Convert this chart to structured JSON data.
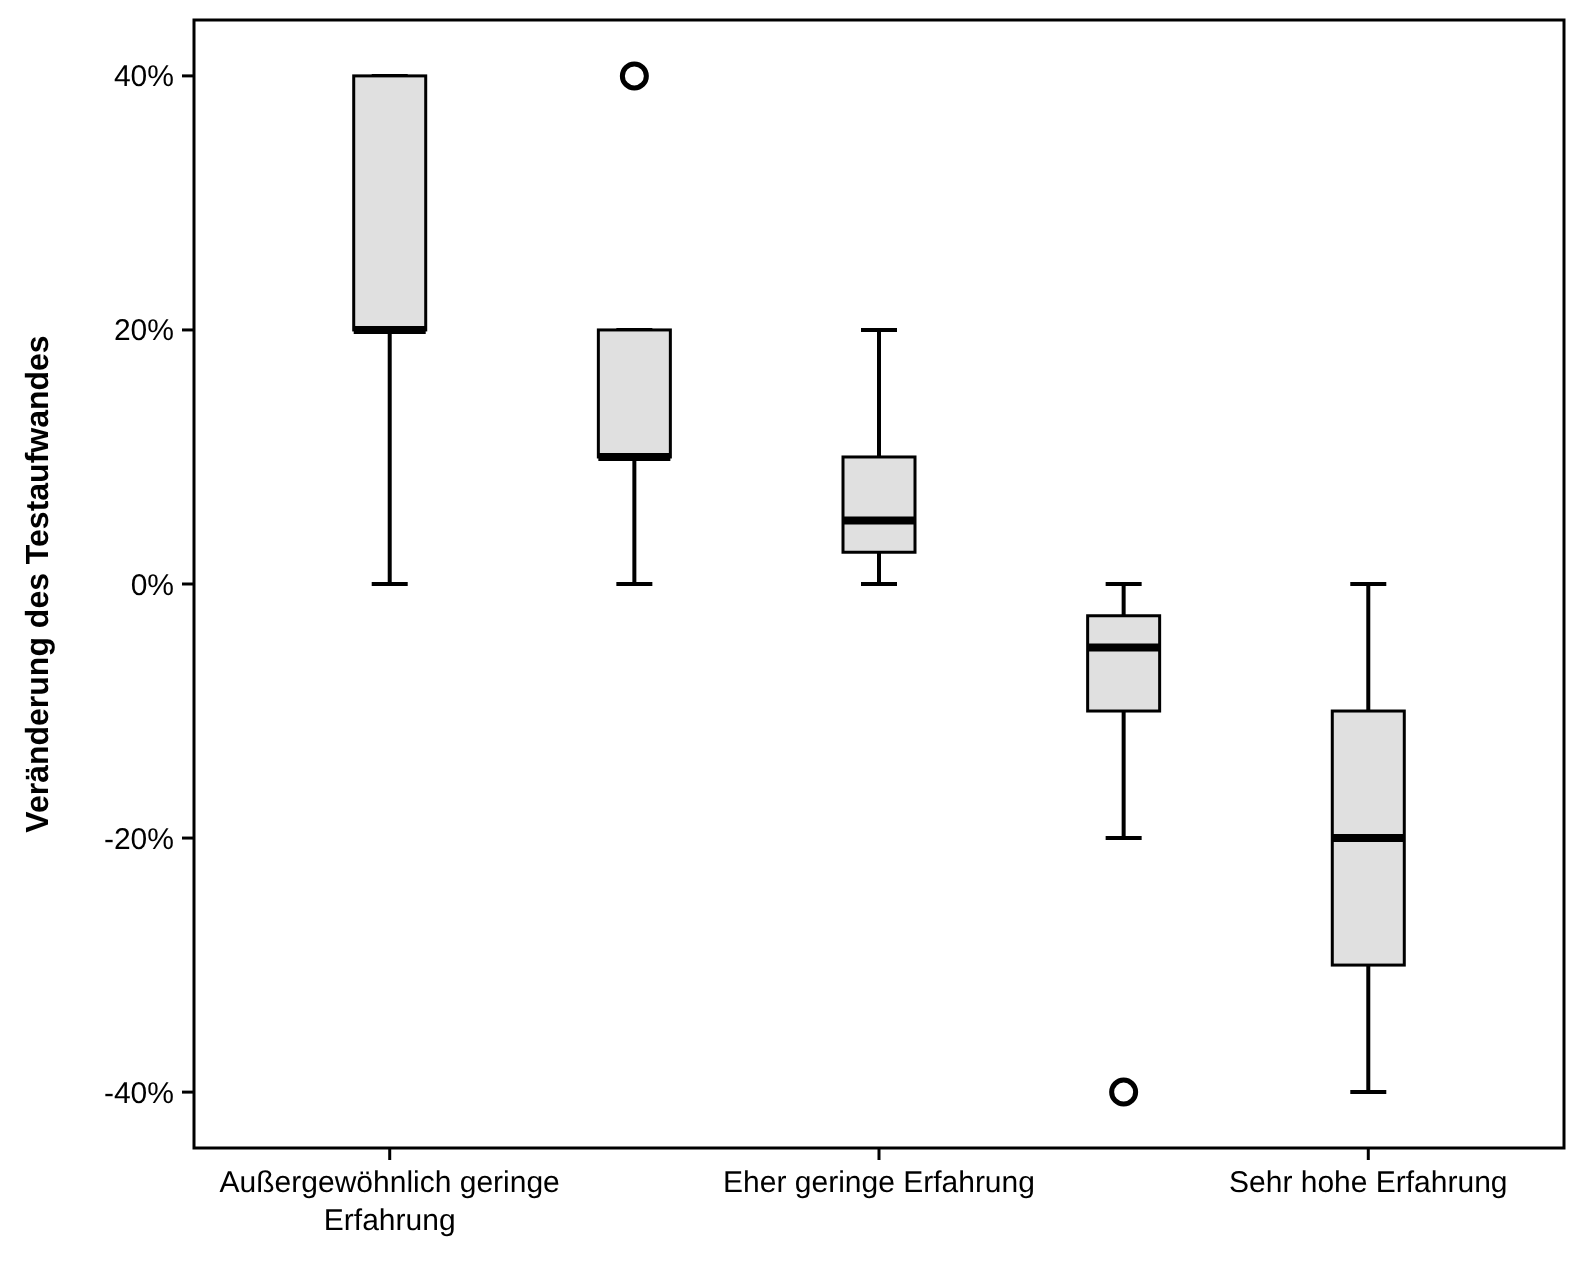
{
  "chart_data": {
    "type": "box",
    "ylabel": "Veränderung des Testaufwandes",
    "categories": [
      "Außergewöhnlich geringe Erfahrung",
      null,
      "Eher geringe Erfahrung",
      null,
      "Sehr hohe Erfahrung"
    ],
    "color": "#e0e0e0",
    "boxes": [
      {
        "low": 0,
        "q1": 20,
        "median": 20,
        "q3": 40,
        "high": 40
      },
      {
        "low": 0,
        "q1": 10,
        "median": 10,
        "q3": 20,
        "high": 20,
        "outliers": [
          40
        ]
      },
      {
        "low": 0,
        "q1": 2.5,
        "median": 5,
        "q3": 10,
        "high": 20
      },
      {
        "low": -20,
        "q1": -10,
        "median": -5,
        "q3": -2.5,
        "high": 0,
        "outliers": [
          -40
        ]
      },
      {
        "low": -40,
        "q1": -30,
        "median": -20,
        "q3": -10,
        "high": 0
      }
    ],
    "ylim": [
      -44.4,
      44.4
    ],
    "yticks": [
      {
        "value": -40,
        "label": "-40%"
      },
      {
        "value": -20,
        "label": "-20%"
      },
      {
        "value": 0,
        "label": "0%"
      },
      {
        "value": 20,
        "label": "20%"
      },
      {
        "value": 40,
        "label": "40%"
      }
    ],
    "marker": "circle"
  }
}
